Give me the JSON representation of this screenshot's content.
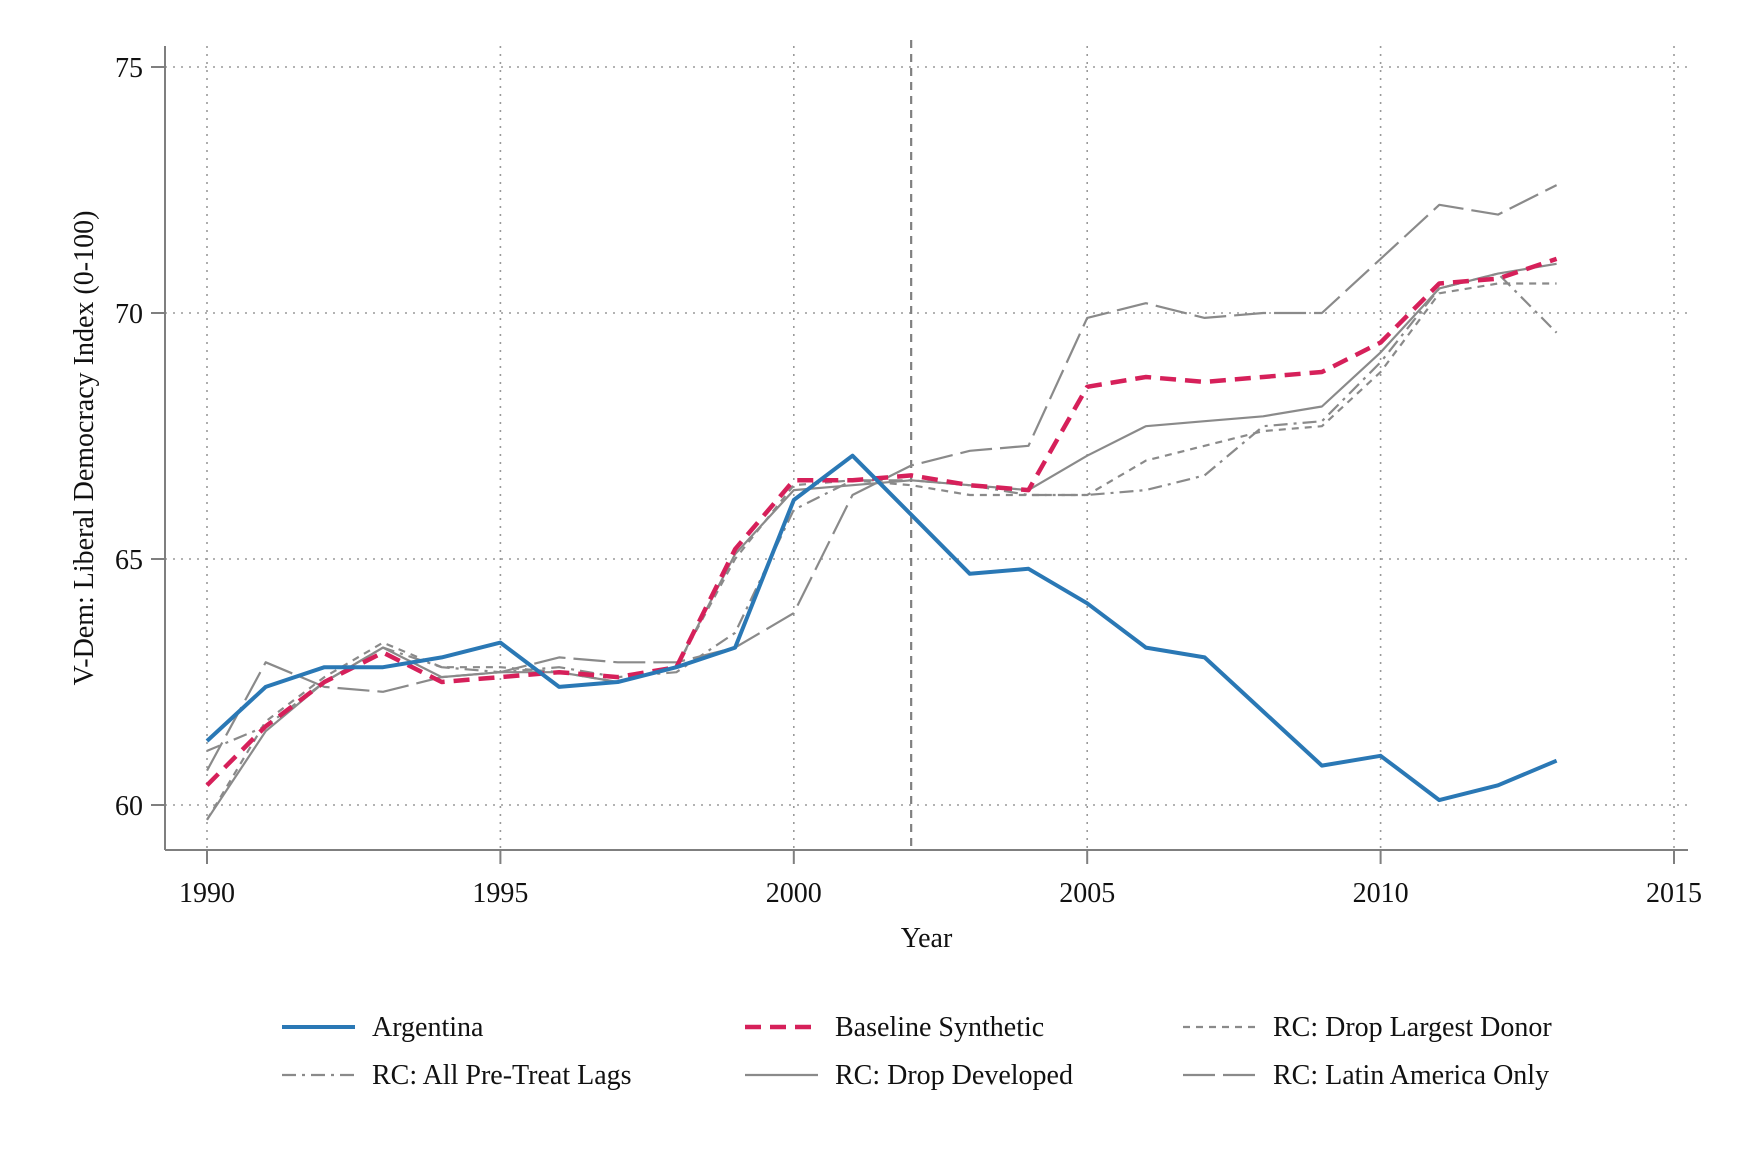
{
  "chart_data": {
    "type": "line",
    "title": "",
    "xlabel": "Year",
    "ylabel": "V-Dem: Liberal Democracy Index (0-100)",
    "xlim": [
      1990,
      2015
    ],
    "ylim": [
      59.2,
      75.3
    ],
    "xticks": [
      1990,
      1995,
      2000,
      2005,
      2010,
      2015
    ],
    "yticks": [
      60,
      65,
      70,
      75
    ],
    "grid": true,
    "treatment_year": 2002,
    "legend_position": "bottom",
    "x": [
      1990,
      1991,
      1992,
      1993,
      1994,
      1995,
      1996,
      1997,
      1998,
      1999,
      2000,
      2001,
      2002,
      2003,
      2004,
      2005,
      2006,
      2007,
      2008,
      2009,
      2010,
      2011,
      2012,
      2013
    ],
    "series": [
      {
        "name": "Argentina",
        "color": "#2a78b5",
        "dash": "",
        "width": 4,
        "values": [
          61.3,
          62.4,
          62.8,
          62.8,
          63.0,
          63.3,
          62.4,
          62.5,
          62.8,
          63.2,
          66.2,
          67.1,
          65.9,
          64.7,
          64.8,
          64.1,
          63.2,
          63.0,
          61.9,
          60.8,
          61.0,
          60.1,
          60.4,
          60.9
        ]
      },
      {
        "name": "Baseline Synthetic",
        "color": "#d6205a",
        "dash": "16 9",
        "width": 4.5,
        "values": [
          60.4,
          61.6,
          62.5,
          63.1,
          62.5,
          62.6,
          62.7,
          62.6,
          62.8,
          65.2,
          66.6,
          66.6,
          66.7,
          66.5,
          66.4,
          68.5,
          68.7,
          68.6,
          68.7,
          68.8,
          69.4,
          70.6,
          70.7,
          71.1
        ]
      },
      {
        "name": "RC: Drop Largest Donor",
        "color": "#8a8a8a",
        "dash": "7 6",
        "width": 2.2,
        "values": [
          59.7,
          61.7,
          62.6,
          63.3,
          62.8,
          62.8,
          62.7,
          62.5,
          62.8,
          65.0,
          66.5,
          66.6,
          66.5,
          66.3,
          66.3,
          66.3,
          67.0,
          67.3,
          67.6,
          67.7,
          68.8,
          70.4,
          70.6,
          70.6
        ]
      },
      {
        "name": "RC: All Pre-Treat Lags",
        "color": "#8a8a8a",
        "dash": "14 6 3 6",
        "width": 2.2,
        "values": [
          61.1,
          61.6,
          62.5,
          63.2,
          62.8,
          62.7,
          62.8,
          62.6,
          62.7,
          63.5,
          66.0,
          66.6,
          66.6,
          66.5,
          66.3,
          66.3,
          66.4,
          66.7,
          67.7,
          67.8,
          69.0,
          70.5,
          70.8,
          69.6
        ]
      },
      {
        "name": "RC: Drop Developed",
        "color": "#8a8a8a",
        "dash": "",
        "width": 2.2,
        "values": [
          59.7,
          61.5,
          62.5,
          63.2,
          62.6,
          62.7,
          62.7,
          62.5,
          62.8,
          65.1,
          66.4,
          66.5,
          66.6,
          66.5,
          66.4,
          67.1,
          67.7,
          67.8,
          67.9,
          68.1,
          69.2,
          70.5,
          70.8,
          71.0
        ]
      },
      {
        "name": "RC: Latin America Only",
        "color": "#8a8a8a",
        "dash": "32 8",
        "width": 2.2,
        "values": [
          60.7,
          62.9,
          62.4,
          62.3,
          62.6,
          62.7,
          63.0,
          62.9,
          62.9,
          63.2,
          63.9,
          66.3,
          66.9,
          67.2,
          67.3,
          69.9,
          70.2,
          69.9,
          70.0,
          70.0,
          71.1,
          72.2,
          72.0,
          72.6
        ]
      }
    ],
    "legend_order": [
      0,
      1,
      2,
      3,
      4,
      5
    ]
  }
}
